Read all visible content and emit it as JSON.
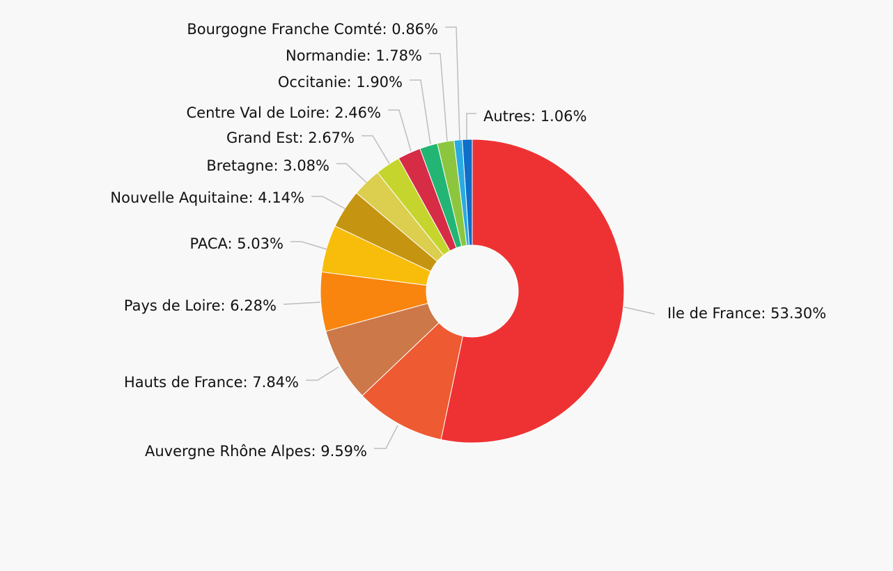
{
  "chart_data": {
    "type": "pie",
    "style": "donut",
    "title": "",
    "slices": [
      {
        "label": "Ile de France",
        "value": 53.3,
        "display": "53.30%",
        "color": "#ee3233"
      },
      {
        "label": "Auvergne Rhône Alpes",
        "value": 9.59,
        "display": "9.59%",
        "color": "#ee5a31"
      },
      {
        "label": "Hauts de France",
        "value": 7.84,
        "display": "7.84%",
        "color": "#cd7849"
      },
      {
        "label": "Pays de Loire",
        "value": 6.28,
        "display": "6.28%",
        "color": "#f9850e"
      },
      {
        "label": "PACA",
        "value": 5.03,
        "display": "5.03%",
        "color": "#f8bc0a"
      },
      {
        "label": "Nouvelle Aquitaine",
        "value": 4.14,
        "display": "4.14%",
        "color": "#c59512"
      },
      {
        "label": "Bretagne",
        "value": 3.08,
        "display": "3.08%",
        "color": "#dcce4e"
      },
      {
        "label": "Grand Est",
        "value": 2.67,
        "display": "2.67%",
        "color": "#c5d52d"
      },
      {
        "label": "Centre Val de Loire",
        "value": 2.46,
        "display": "2.46%",
        "color": "#d62c45"
      },
      {
        "label": "Occitanie",
        "value": 1.9,
        "display": "1.90%",
        "color": "#22b573"
      },
      {
        "label": "Normandie",
        "value": 1.78,
        "display": "1.78%",
        "color": "#8cc63f"
      },
      {
        "label": "Bourgogne Franche Comté",
        "value": 0.86,
        "display": "0.86%",
        "color": "#29abe2"
      },
      {
        "label": "Autres",
        "value": 1.06,
        "display": "1.06%",
        "color": "#0e6ec8"
      }
    ]
  }
}
